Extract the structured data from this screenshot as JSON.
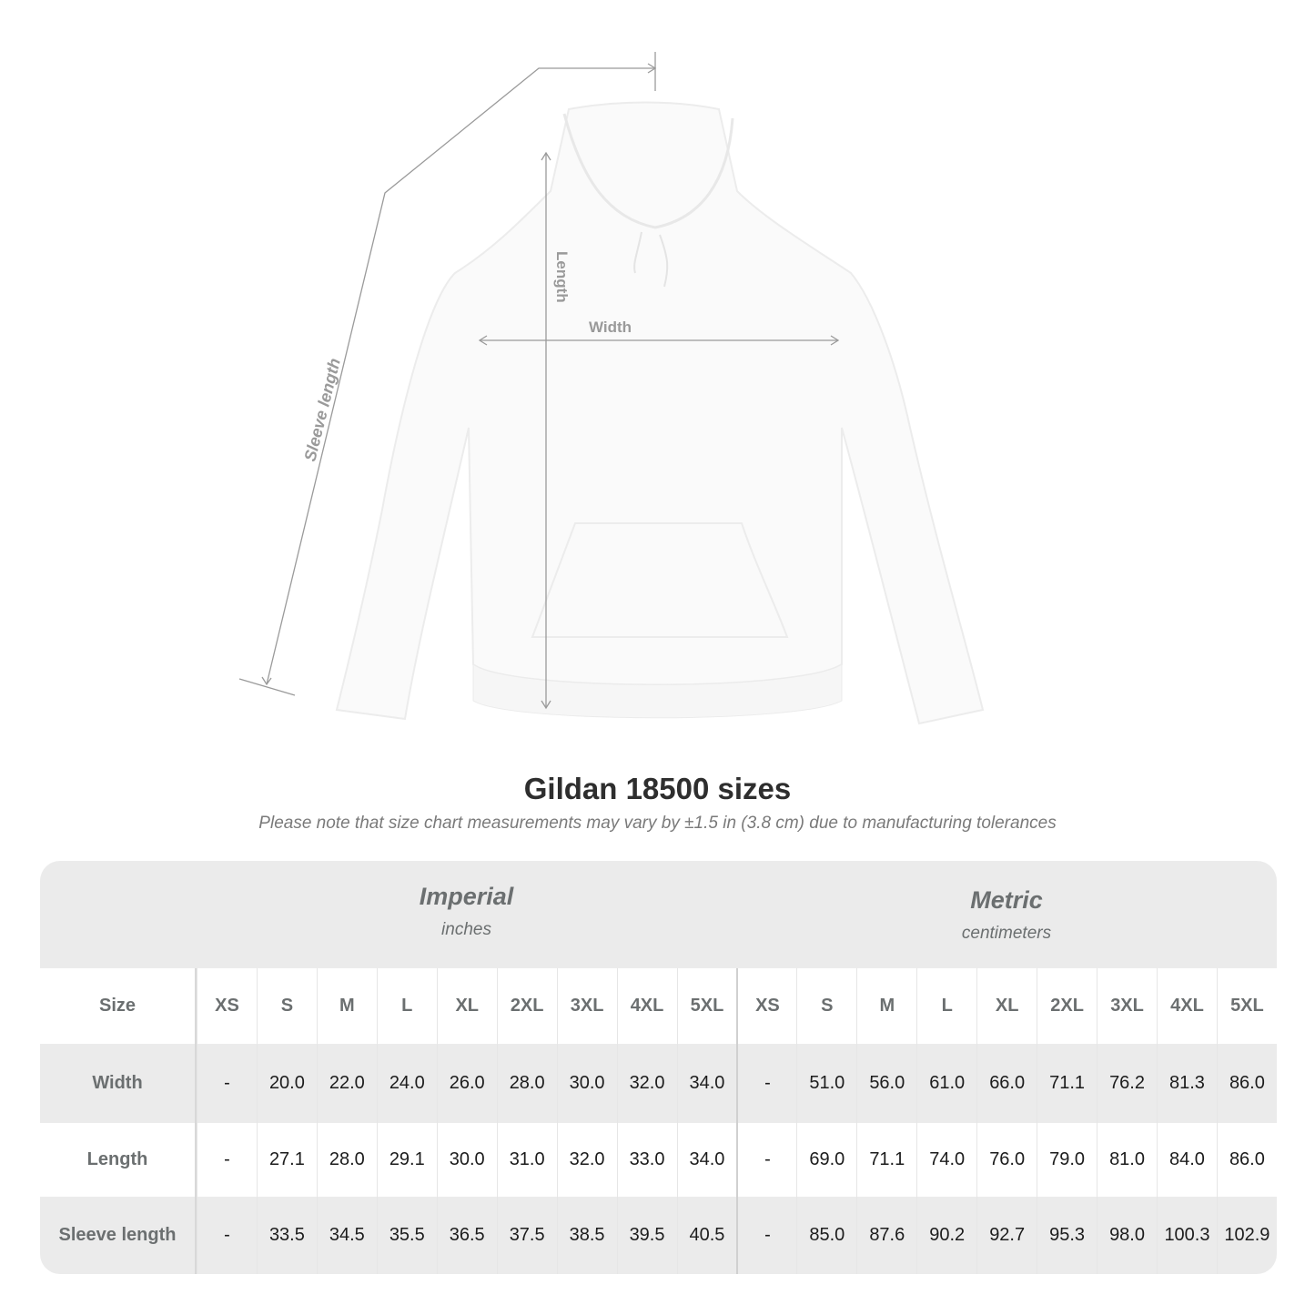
{
  "diagram": {
    "labels": {
      "sleeve": "Sleeve length",
      "length": "Length",
      "width": "Width"
    }
  },
  "title": "Gildan 18500 sizes",
  "note": "Please note that size chart measurements may vary by ±1.5 in (3.8 cm) due to manufacturing tolerances",
  "table": {
    "imperial": {
      "name": "Imperial",
      "unit": "inches"
    },
    "metric": {
      "name": "Metric",
      "unit": "centimeters"
    },
    "size_label": "Size",
    "sizes": [
      "XS",
      "S",
      "M",
      "L",
      "XL",
      "2XL",
      "3XL",
      "4XL",
      "5XL"
    ],
    "rows": [
      {
        "label": "Width",
        "imperial": [
          "-",
          "20.0",
          "22.0",
          "24.0",
          "26.0",
          "28.0",
          "30.0",
          "32.0",
          "34.0"
        ],
        "metric": [
          "-",
          "51.0",
          "56.0",
          "61.0",
          "66.0",
          "71.1",
          "76.2",
          "81.3",
          "86.0"
        ]
      },
      {
        "label": "Length",
        "imperial": [
          "-",
          "27.1",
          "28.0",
          "29.1",
          "30.0",
          "31.0",
          "32.0",
          "33.0",
          "34.0"
        ],
        "metric": [
          "-",
          "69.0",
          "71.1",
          "74.0",
          "76.0",
          "79.0",
          "81.0",
          "84.0",
          "86.0"
        ]
      },
      {
        "label": "Sleeve length",
        "imperial": [
          "-",
          "33.5",
          "34.5",
          "35.5",
          "36.5",
          "37.5",
          "38.5",
          "39.5",
          "40.5"
        ],
        "metric": [
          "-",
          "85.0",
          "87.6",
          "90.2",
          "92.7",
          "95.3",
          "98.0",
          "100.3",
          "102.9"
        ]
      }
    ]
  },
  "colors": {
    "header_bg": "#ebebeb",
    "label_text": "#6b6f70",
    "title_text": "#2e2e2e"
  }
}
